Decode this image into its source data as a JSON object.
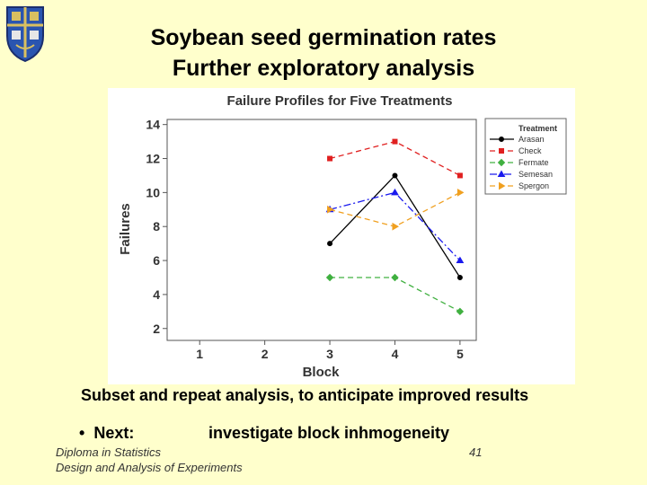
{
  "slide": {
    "title_line1": "Soybean seed germination rates",
    "title_line2": "Further exploratory analysis",
    "subset_text": "Subset and repeat analysis, to anticipate improved results",
    "bullet": "•",
    "next_label": "Next:",
    "next_detail": "investigate block inhmogeneity",
    "footer_line1": "Diploma in Statistics",
    "footer_line2": "Design and Analysis of Experiments",
    "page_number": "41"
  },
  "chart_data": {
    "type": "line",
    "title": "Failure Profiles for Five Treatments",
    "xlabel": "Block",
    "ylabel": "Failures",
    "x": [
      3,
      4,
      5
    ],
    "xticks": [
      1,
      2,
      3,
      4,
      5
    ],
    "xlim": [
      0.5,
      5.25
    ],
    "yticks": [
      2,
      4,
      6,
      8,
      10,
      12,
      14
    ],
    "ylim": [
      1.3,
      14.3
    ],
    "grid": false,
    "legend_placement": "top-right outside",
    "legend_title": "Treatment",
    "series": [
      {
        "name": "Arasan",
        "values": [
          7,
          11,
          5
        ],
        "color": "#000000",
        "marker": "circle",
        "dash": "solid"
      },
      {
        "name": "Check",
        "values": [
          12,
          13,
          11
        ],
        "color": "#e02020",
        "marker": "square",
        "dash": "dashed"
      },
      {
        "name": "Fermate",
        "values": [
          5,
          5,
          3
        ],
        "color": "#40b040",
        "marker": "diamond",
        "dash": "dashed"
      },
      {
        "name": "Semesan",
        "values": [
          9,
          10,
          6
        ],
        "color": "#1a1aee",
        "marker": "triangle",
        "dash": "dashdot"
      },
      {
        "name": "Spergon",
        "values": [
          9,
          8,
          10
        ],
        "color": "#f0a020",
        "marker": "triangle-right",
        "dash": "dashed"
      }
    ]
  }
}
